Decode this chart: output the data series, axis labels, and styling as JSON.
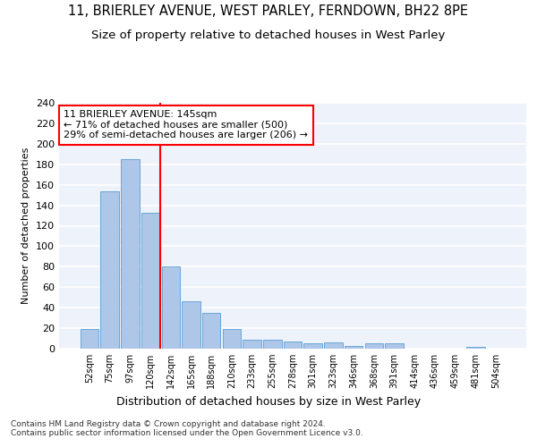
{
  "title1": "11, BRIERLEY AVENUE, WEST PARLEY, FERNDOWN, BH22 8PE",
  "title2": "Size of property relative to detached houses in West Parley",
  "xlabel": "Distribution of detached houses by size in West Parley",
  "ylabel": "Number of detached properties",
  "categories": [
    "52sqm",
    "75sqm",
    "97sqm",
    "120sqm",
    "142sqm",
    "165sqm",
    "188sqm",
    "210sqm",
    "233sqm",
    "255sqm",
    "278sqm",
    "301sqm",
    "323sqm",
    "346sqm",
    "368sqm",
    "391sqm",
    "414sqm",
    "436sqm",
    "459sqm",
    "481sqm",
    "504sqm"
  ],
  "values": [
    19,
    154,
    185,
    133,
    80,
    46,
    35,
    19,
    9,
    9,
    7,
    5,
    6,
    3,
    5,
    5,
    0,
    0,
    0,
    2,
    0
  ],
  "bar_color": "#aec6e8",
  "bar_edge_color": "#5a9fd4",
  "annotation_text": "11 BRIERLEY AVENUE: 145sqm\n← 71% of detached houses are smaller (500)\n29% of semi-detached houses are larger (206) →",
  "annotation_box_color": "white",
  "annotation_box_edge_color": "red",
  "vline_color": "red",
  "ylim": [
    0,
    240
  ],
  "yticks": [
    0,
    20,
    40,
    60,
    80,
    100,
    120,
    140,
    160,
    180,
    200,
    220,
    240
  ],
  "footer": "Contains HM Land Registry data © Crown copyright and database right 2024.\nContains public sector information licensed under the Open Government Licence v3.0.",
  "background_color": "#eef2fa",
  "grid_color": "white",
  "title1_fontsize": 10.5,
  "title2_fontsize": 9.5,
  "xlabel_fontsize": 9,
  "ylabel_fontsize": 8,
  "tick_fontsize": 8,
  "footer_fontsize": 6.5,
  "annotation_fontsize": 8
}
